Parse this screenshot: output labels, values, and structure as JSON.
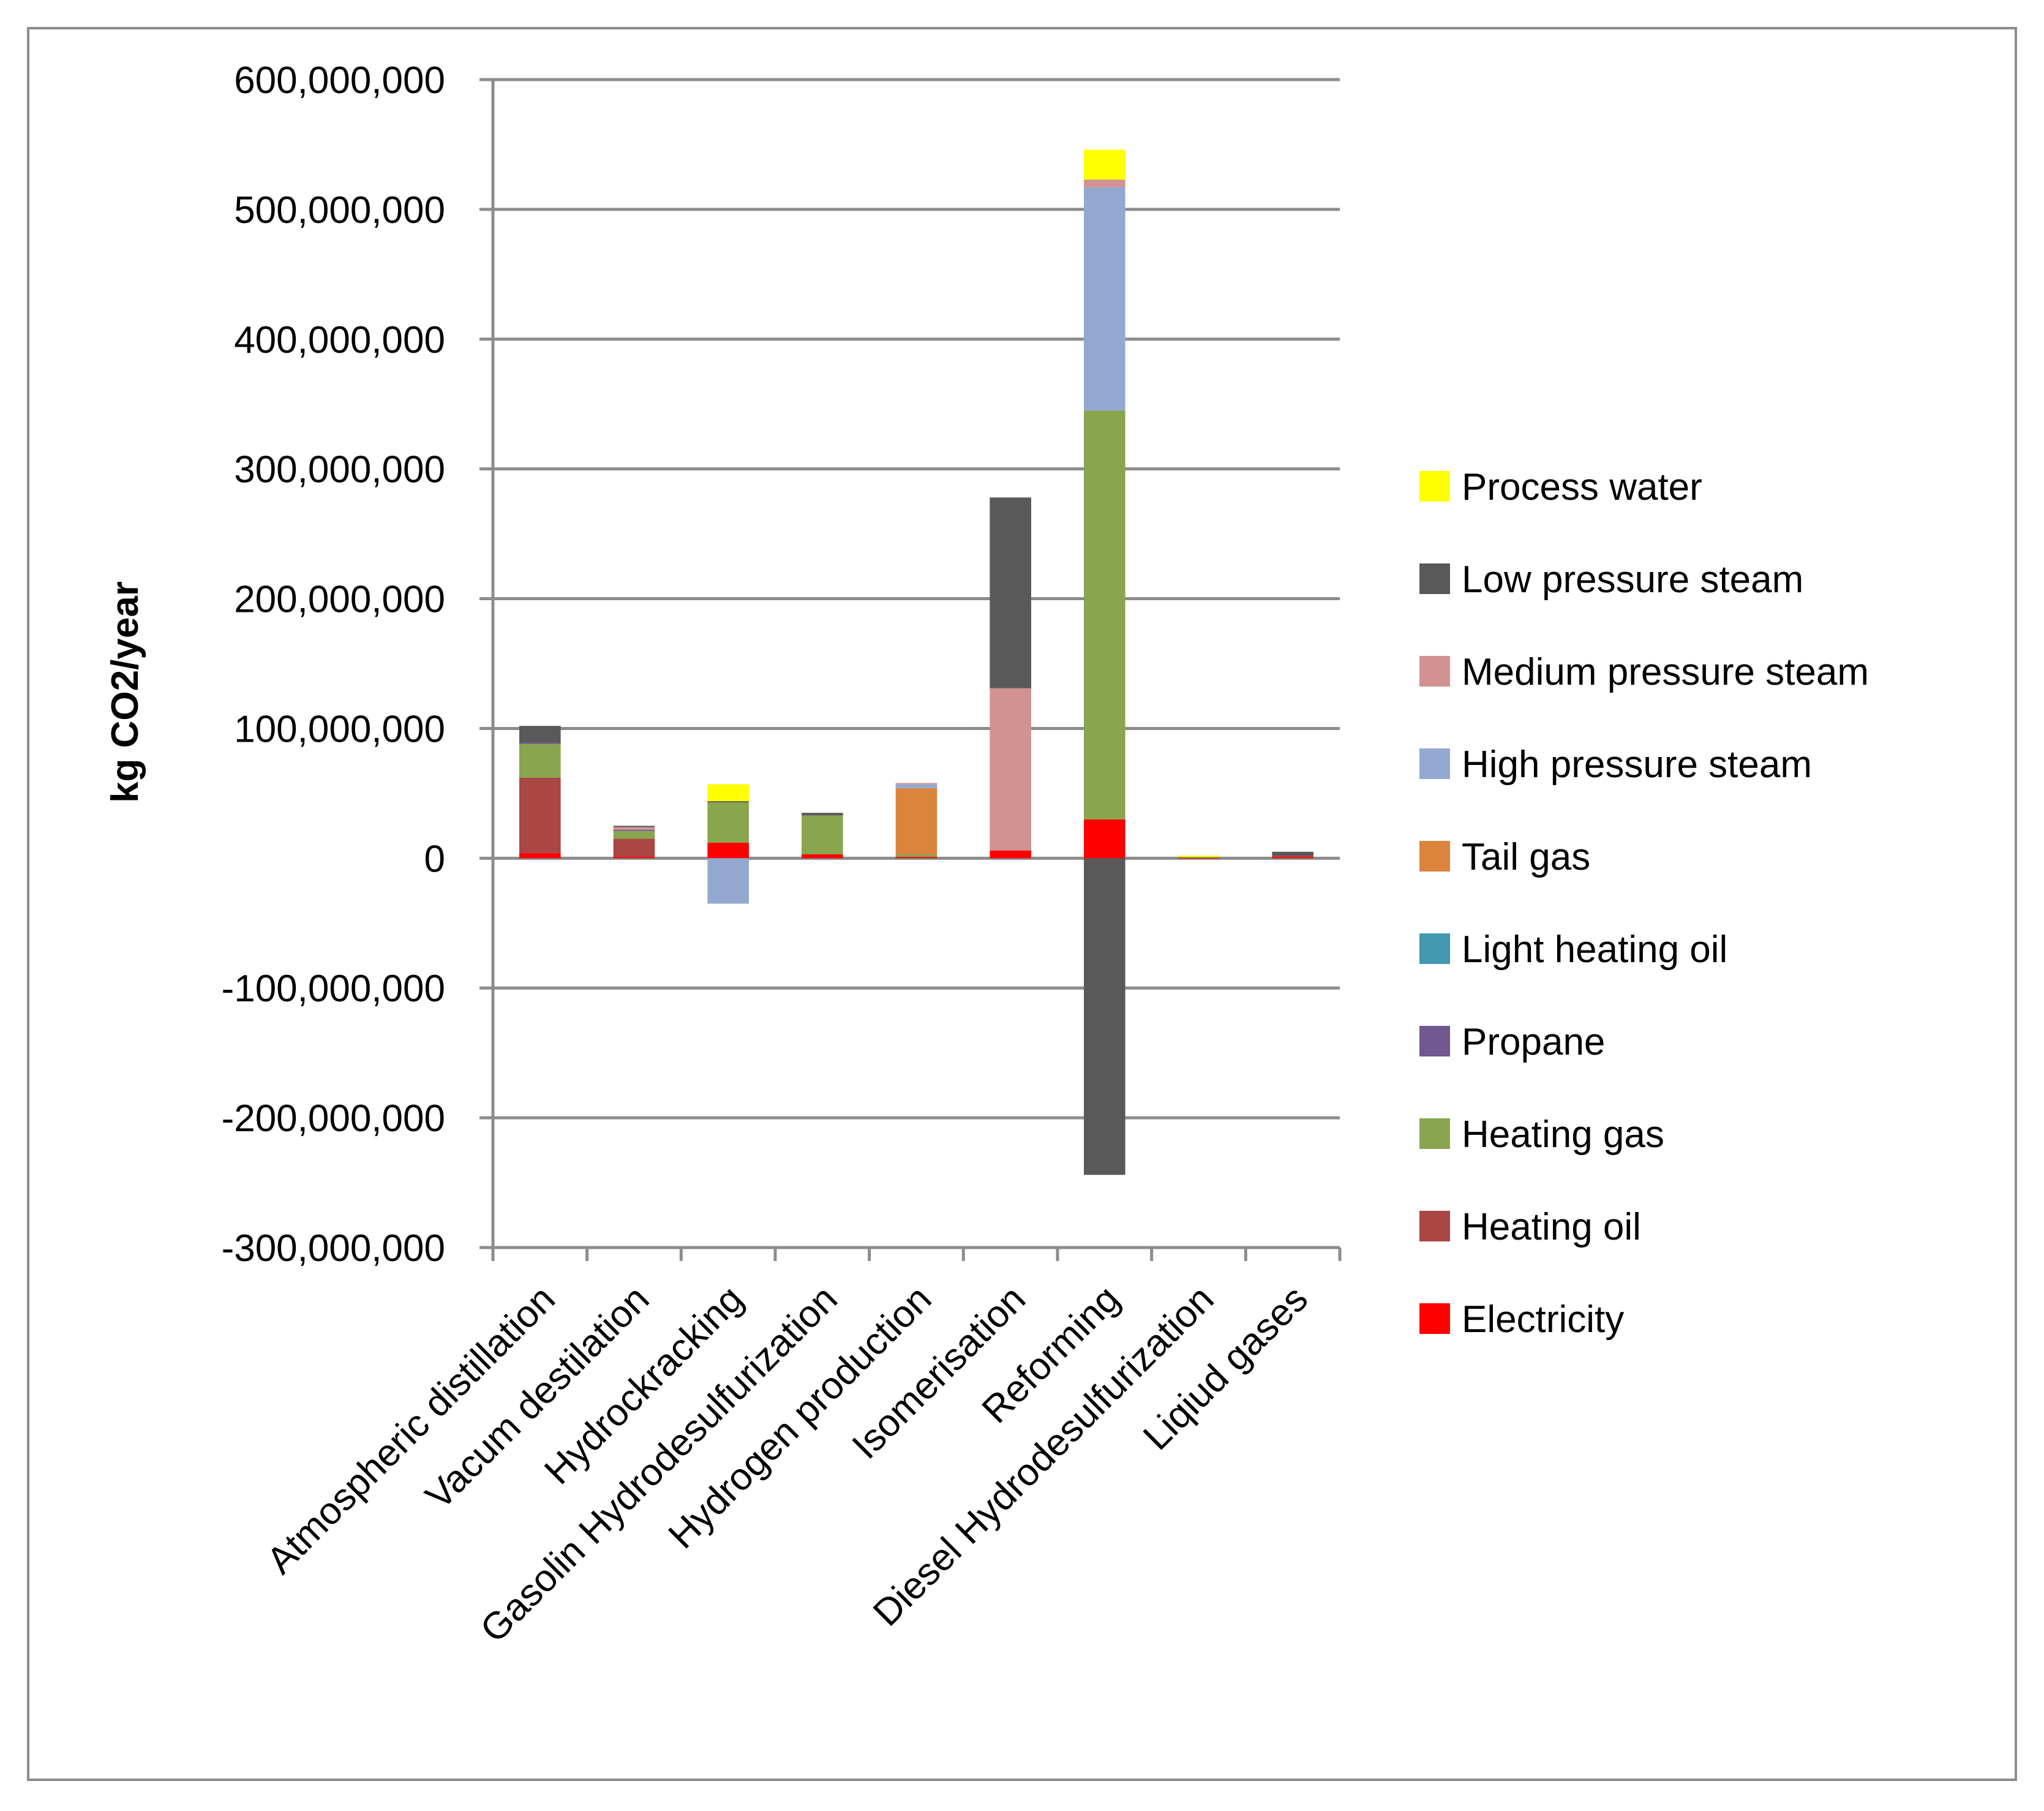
{
  "chart_data": {
    "type": "bar",
    "stacked": true,
    "title": "",
    "ylabel": "kg CO2/year",
    "xlabel": "",
    "ylim": [
      -300000000,
      600000000
    ],
    "yticks": [
      600000000,
      500000000,
      400000000,
      300000000,
      200000000,
      100000000,
      0,
      -100000000,
      -200000000,
      -300000000
    ],
    "ytick_labels": [
      "600,000,000",
      "500,000,000",
      "400,000,000",
      "300,000,000",
      "200,000,000",
      "100,000,000",
      "0",
      "-100,000,000",
      "-200,000,000",
      "-300,000,000"
    ],
    "grid": true,
    "legend_position": "right",
    "categories": [
      "Atmospheric distillation",
      "Vacum destilation",
      "Hydrockracking",
      "Gasolin Hydrodesulfurization",
      "Hydrogen production",
      "Isomerisation",
      "Reforming",
      "Diesel Hydrodesulfurization",
      "Liqiud gases"
    ],
    "series": [
      {
        "name": "Electricity",
        "color": "#ff0000",
        "values": [
          4000000,
          1000000,
          12000000,
          3000000,
          1000000,
          6000000,
          30000000,
          500000,
          1000000
        ]
      },
      {
        "name": "Heating oil",
        "color": "#aa4643",
        "values": [
          58000000,
          14000000,
          0,
          0,
          0,
          0,
          0,
          0,
          1000000
        ]
      },
      {
        "name": "Heating gas",
        "color": "#89a54e",
        "values": [
          26000000,
          6000000,
          31000000,
          30000000,
          2000000,
          0,
          315000000,
          500000,
          0
        ]
      },
      {
        "name": "Propane",
        "color": "#71588f",
        "values": [
          1000000,
          1000000,
          0,
          0,
          0,
          0,
          0,
          0,
          0
        ]
      },
      {
        "name": "Light heating oil",
        "color": "#4198af",
        "values": [
          0,
          0,
          0,
          0,
          0,
          0,
          0,
          0,
          0
        ]
      },
      {
        "name": "Tail gas",
        "color": "#db843d",
        "values": [
          0,
          0,
          0,
          0,
          51000000,
          0,
          0,
          0,
          0
        ]
      },
      {
        "name": "High pressure steam",
        "color": "#93a9cf",
        "values": [
          0,
          0,
          -35000000,
          0,
          3000000,
          0,
          172000000,
          0,
          0
        ]
      },
      {
        "name": "Medium pressure steam",
        "color": "#d19392",
        "values": [
          0,
          2000000,
          0,
          0,
          1000000,
          125000000,
          6000000,
          0,
          0
        ]
      },
      {
        "name": "Low pressure steam",
        "color": "#595959",
        "values": [
          13000000,
          1000000,
          1000000,
          2000000,
          0,
          147000000,
          -244000000,
          0,
          3000000
        ]
      },
      {
        "name": "Process water",
        "color": "#ffff00",
        "values": [
          0,
          0,
          13000000,
          0,
          0,
          0,
          23000000,
          1000000,
          0
        ]
      }
    ]
  }
}
